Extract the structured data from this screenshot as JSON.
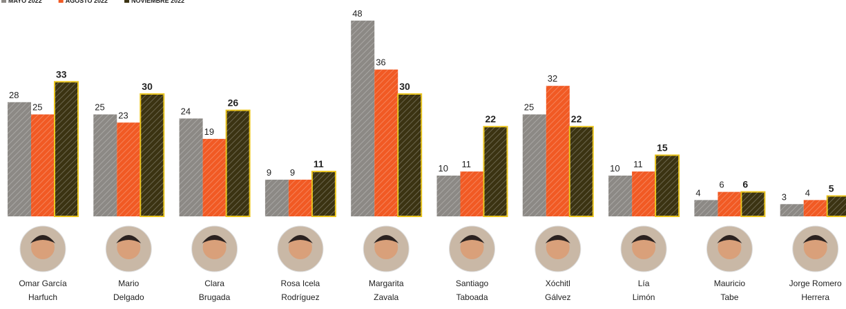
{
  "chart_data": {
    "type": "bar",
    "categories": [
      "Omar García\nHarfuch",
      "Mario\nDelgado",
      "Clara\nBrugada",
      "Rosa Icela\nRodríguez",
      "Margarita\nZavala",
      "Santiago\nTaboada",
      "Xóchitl\nGálvez",
      "Lía\nLimón",
      "Mauricio\nTabe",
      "Jorge Romero\nHerrera"
    ],
    "series": [
      {
        "name": "MAYO 2022",
        "color": "#8c8985",
        "values": [
          28,
          25,
          24,
          9,
          48,
          10,
          25,
          10,
          4,
          3
        ]
      },
      {
        "name": "AGOSTO 2022",
        "color": "#f15a24",
        "values": [
          25,
          23,
          19,
          9,
          36,
          11,
          32,
          11,
          6,
          4
        ]
      },
      {
        "name": "NOVIEMBRE 2022",
        "color": "#3b3312",
        "edgecolor": "#e9c31b",
        "values": [
          33,
          30,
          26,
          11,
          30,
          22,
          22,
          15,
          6,
          5
        ]
      }
    ],
    "legend": "top-left"
  }
}
